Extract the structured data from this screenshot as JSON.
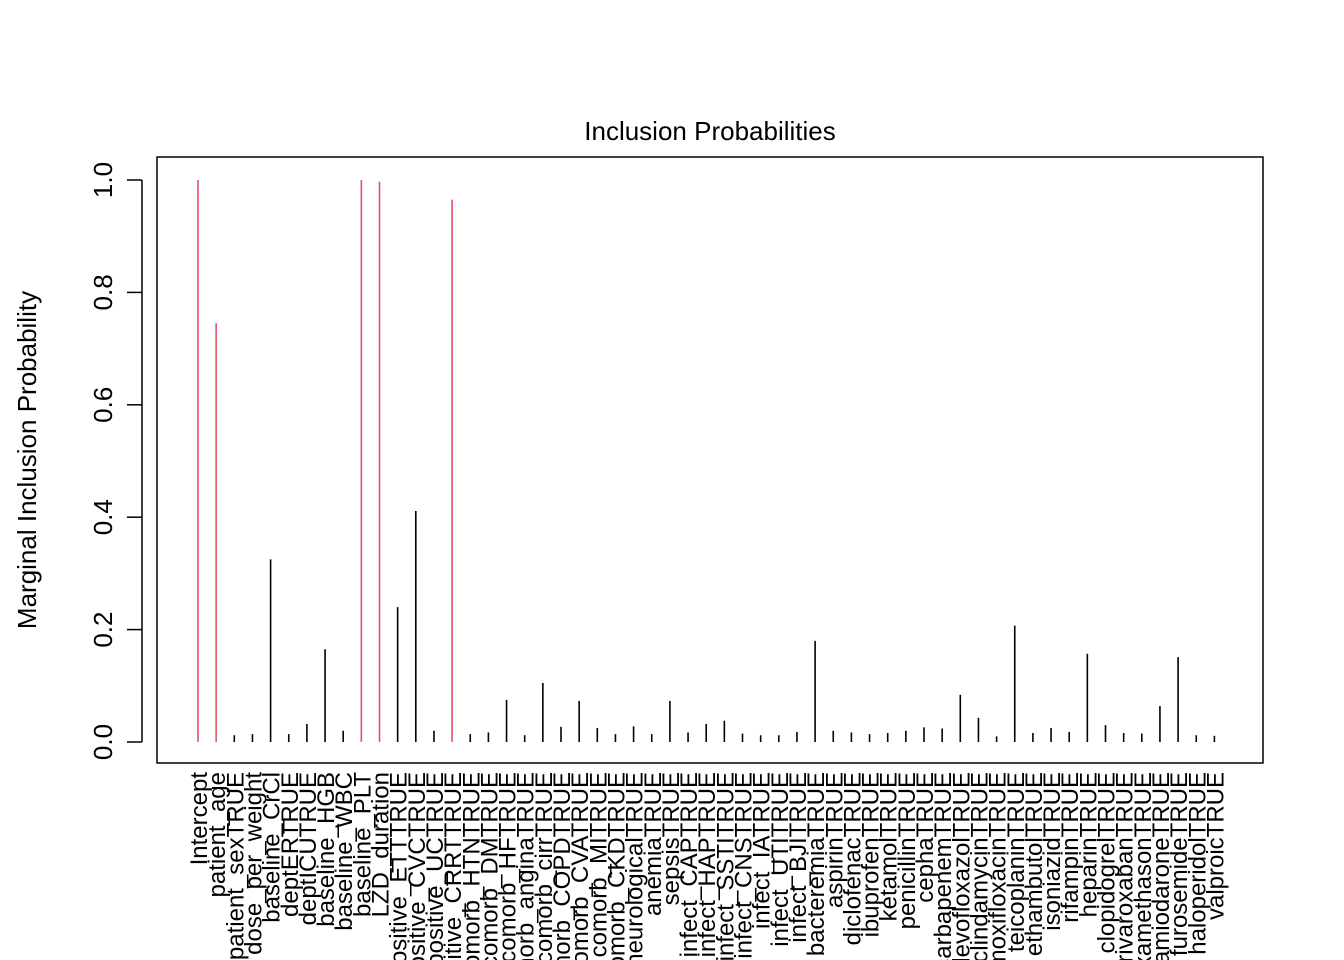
{
  "chart_data": {
    "type": "bar",
    "title": "Inclusion Probabilities",
    "xlabel": "",
    "ylabel": "Marginal Inclusion Probability",
    "ylim": [
      0.0,
      1.0
    ],
    "yticks": [
      "0.0",
      "0.2",
      "0.4",
      "0.6",
      "0.8",
      "1.0"
    ],
    "grid": false,
    "legend": "none",
    "colors": {
      "selected": "#DF536B",
      "other": "#000000",
      "frame": "#000000"
    },
    "categories": [
      "Intercept",
      "patient_age",
      "patient_sexTRUE",
      "dose_per_weight",
      "baseline_CrCl",
      "deptERTRUE",
      "deptICUTRUE",
      "baseline_HGB",
      "baseline_WBC",
      "baseline_PLT",
      "LZD_duration",
      "positive_ETTTRUE",
      "positive_CVCTRUE",
      "positive_UCTRUE",
      "positive_CRRTTRUE",
      "comorb_HTNTRUE",
      "comorb_DMTRUE",
      "comorb_HFTRUE",
      "comorb_anginaTRUE",
      "comorb_cirrTRUE",
      "comorb_COPDTRUE",
      "comorb_CVATRUE",
      "comorb_MITRUE",
      "comorb_CKDTRUE",
      "neurologicalTRUE",
      "anemiaTRUE",
      "sepsisTRUE",
      "infect_CAPTRUE",
      "infect_HAPTRUE",
      "infect_SSTITRUE",
      "infect_CNSTRUE",
      "infect_IATRUE",
      "infect_UTITRUE",
      "infect_BJITRUE",
      "bacteremiaTRUE",
      "aspirinTRUE",
      "diclofenacTRUE",
      "ibuprofenTRUE",
      "ketamolTRUE",
      "penicillinTRUE",
      "cephaTRUE",
      "carbapenemTRUE",
      "levofloxazolTRUE",
      "clindamycinTRUE",
      "moxifloxacinTRUE",
      "teicoplaninTRUE",
      "ethambutolTRUE",
      "isoniazidTRUE",
      "rifampinTRUE",
      "heparinTRUE",
      "clopidogrelTRUE",
      "rivaroxabanTRUE",
      "dexamethasonTRUE",
      "amiodaroneTRUE",
      "furosemideTRUE",
      "haloperidolTRUE",
      "valproicTRUE"
    ],
    "values": [
      1.0,
      0.745,
      0.012,
      0.014,
      0.325,
      0.014,
      0.032,
      0.165,
      0.02,
      1.0,
      0.997,
      0.24,
      0.411,
      0.02,
      0.965,
      0.014,
      0.017,
      0.075,
      0.012,
      0.105,
      0.027,
      0.073,
      0.025,
      0.014,
      0.028,
      0.014,
      0.073,
      0.017,
      0.032,
      0.038,
      0.015,
      0.012,
      0.012,
      0.018,
      0.18,
      0.02,
      0.017,
      0.014,
      0.016,
      0.02,
      0.026,
      0.024,
      0.084,
      0.043,
      0.01,
      0.207,
      0.016,
      0.025,
      0.018,
      0.157,
      0.03,
      0.016,
      0.015,
      0.064,
      0.151,
      0.012,
      0.011
    ],
    "selected_threshold": 0.5
  }
}
